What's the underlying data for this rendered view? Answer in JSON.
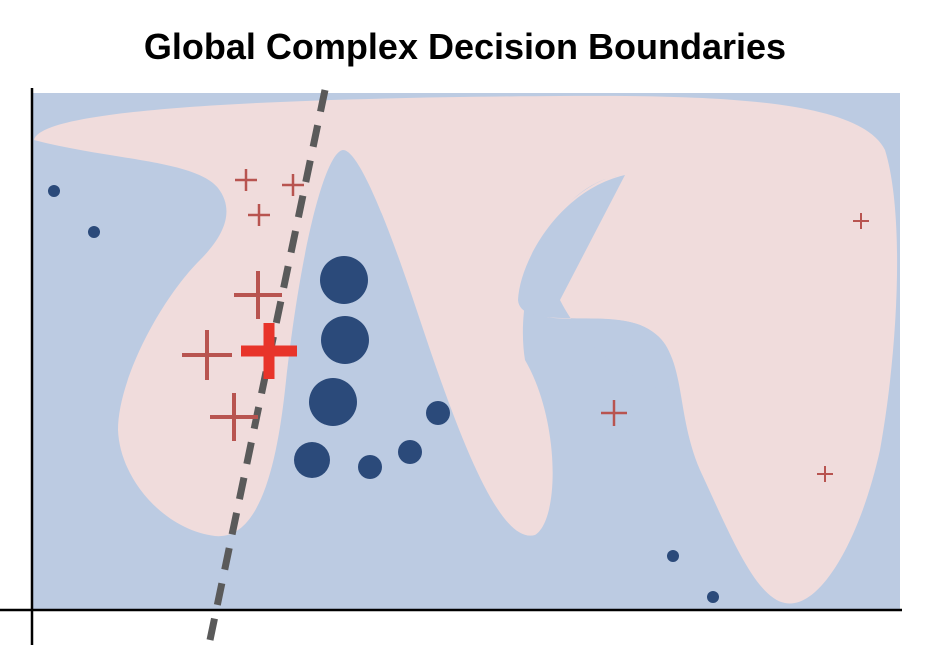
{
  "title": "Global Complex Decision Boundaries",
  "colors": {
    "background_region": "#bccbe2",
    "positive_region": "#f0dcdc",
    "negative_marker": "#2b4a7a",
    "positive_marker": "#b85450",
    "highlight_marker": "#e8342a",
    "local_boundary": "#5a5a5a",
    "axes": "#000000"
  },
  "legend": []
}
